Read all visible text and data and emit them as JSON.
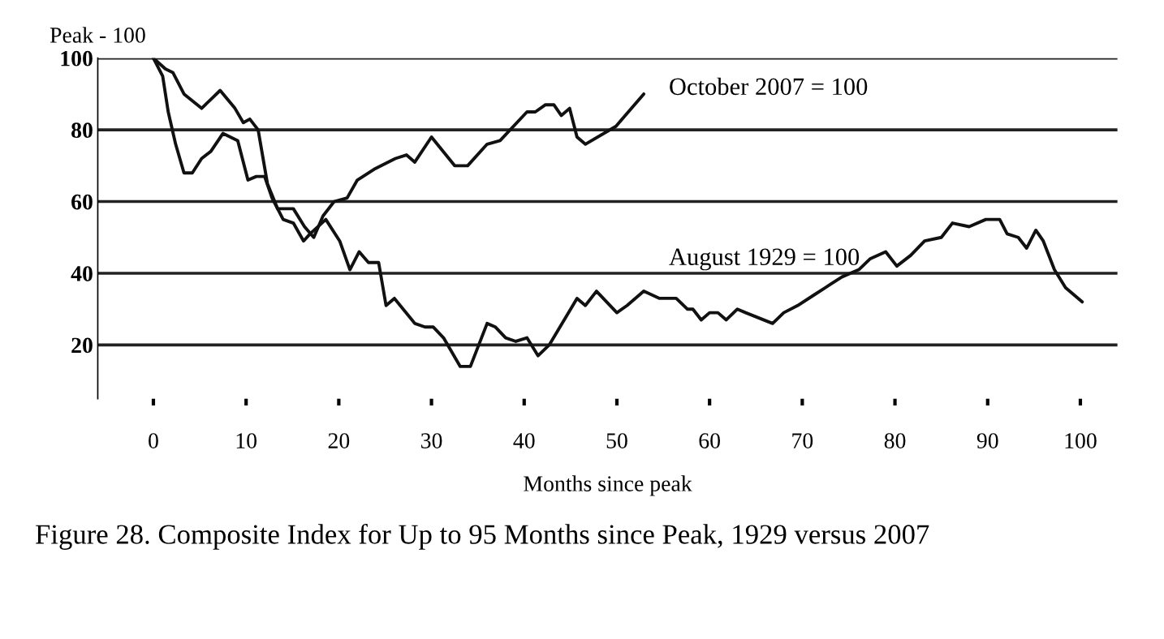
{
  "chart_data": {
    "type": "line",
    "ylabel": "Peak - 100",
    "xlabel": "Months since peak",
    "xlim": [
      -6,
      104
    ],
    "ylim": [
      5,
      100
    ],
    "xticks": [
      0,
      10,
      20,
      30,
      40,
      50,
      60,
      70,
      80,
      90,
      100
    ],
    "yticks": [
      20,
      40,
      60,
      80,
      100
    ],
    "grid": "y",
    "legend": false,
    "series": [
      {
        "color": "#111111",
        "x": [
          0,
          1.3,
          2.1,
          3.3,
          5.2,
          6.4,
          7.2,
          8.8,
          9.7,
          10.4,
          11.3,
          12.3,
          13.4,
          15.1,
          16.3,
          17.3,
          18.3,
          19.5,
          20.9,
          22,
          23.8,
          26.1,
          27.3,
          28.2,
          30,
          32.5,
          33.9,
          36,
          37.4,
          40.3,
          41.2,
          42.3,
          43.2,
          44,
          44.9,
          45.7,
          46.6,
          49.9,
          52.9
        ],
        "values": [
          100,
          97,
          96,
          90,
          86,
          89,
          91,
          86,
          82,
          83,
          80,
          65,
          58,
          58,
          53,
          50,
          56,
          60,
          61,
          66,
          69,
          72,
          73,
          71,
          78,
          70,
          70,
          76,
          77,
          85,
          85,
          87,
          87,
          84,
          86,
          78,
          76,
          81,
          90
        ]
      },
      {
        "color": "#111111",
        "x": [
          0,
          1,
          1.6,
          2.4,
          3.3,
          4.2,
          5.2,
          6.2,
          7.5,
          9.1,
          10.2,
          11.1,
          12,
          12.8,
          14,
          15.1,
          16.2,
          16.9,
          18.6,
          20.1,
          21.2,
          22.2,
          23.2,
          24.3,
          25.1,
          26,
          28.2,
          29.3,
          30.2,
          31.3,
          33.1,
          34.2,
          36,
          36.9,
          38,
          39.1,
          40.3,
          41.5,
          42.7,
          45.7,
          46.6,
          47.8,
          50,
          51.1,
          52.9,
          54.6,
          56.4,
          57.6,
          58.2,
          59.1,
          60,
          60.9,
          61.8,
          63,
          63.9,
          66.8,
          68,
          69.5,
          71.3,
          73.1,
          74.3,
          76.1,
          77.3,
          79,
          80.2,
          81.7,
          83.2,
          85,
          86.2,
          88,
          89.8,
          91.3,
          92.1,
          93.3,
          94.2,
          95.2,
          96,
          97.2,
          98.4,
          100.2
        ],
        "values": [
          100,
          95,
          85,
          76,
          68,
          68,
          72,
          74,
          79,
          77,
          66,
          67,
          67,
          61,
          55,
          54,
          49,
          51,
          55,
          49,
          41,
          46,
          43,
          43,
          31,
          33,
          26,
          25,
          25,
          22,
          14,
          14,
          26,
          25,
          22,
          21,
          22,
          17,
          20,
          33,
          31,
          35,
          29,
          31,
          35,
          33,
          33,
          30,
          30,
          27,
          29,
          29,
          27,
          30,
          29,
          26,
          29,
          31,
          34,
          37,
          39,
          41,
          44,
          46,
          42,
          45,
          49,
          50,
          54,
          53,
          55,
          55,
          51,
          50,
          47,
          52,
          49,
          41,
          36,
          32
        ]
      }
    ],
    "annotations": [
      "October 2007 = 100",
      "August 1929 = 100",
      "Figure 28. Composite Index for Up to 95 Months since Peak, 1929 versus 2007"
    ]
  }
}
